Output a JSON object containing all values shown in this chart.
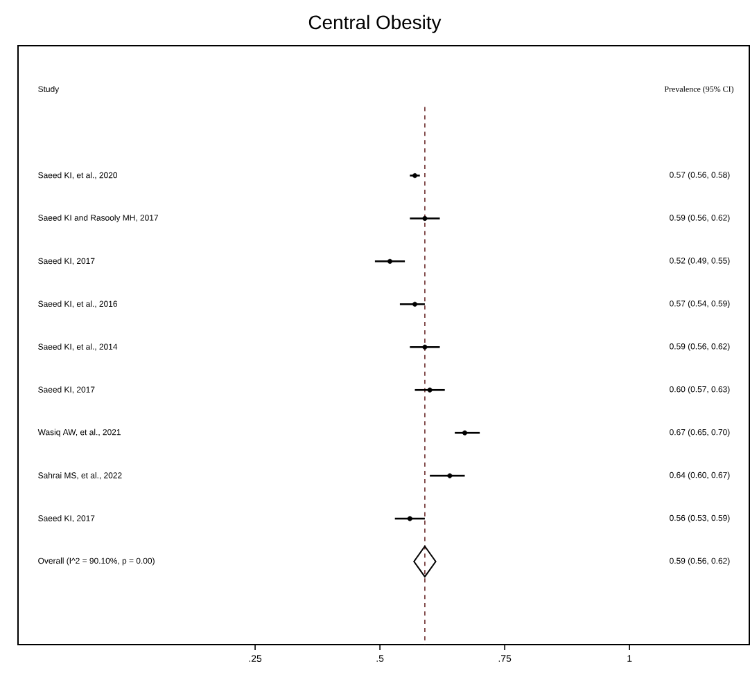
{
  "chart_data": {
    "type": "scatter",
    "orientation": "horizontal",
    "title": "Central Obesity",
    "annotations": [
      "Study",
      "Prevalence (95% CI)",
      "0.57 (0.56, 0.58)",
      "0.59 (0.56, 0.62)",
      "0.52 (0.49, 0.55)",
      "0.57 (0.54, 0.59)",
      "0.59 (0.56, 0.62)",
      "0.60 (0.57, 0.63)",
      "0.67 (0.65, 0.70)",
      "0.64 (0.60, 0.67)",
      "0.56 (0.53, 0.59)",
      "0.59 (0.56, 0.62)"
    ],
    "categories": [
      "Saeed KI, et al., 2020",
      "Saeed KI and Rasooly MH, 2017",
      "Saeed KI, 2017",
      "Saeed KI, et al., 2016",
      "Saeed KI, et al., 2014",
      "Saeed KI, 2017",
      "Wasiq AW, et al., 2021",
      "Sahrai MS, et al., 2022",
      "Saeed KI, 2017",
      "Overall  (I^2 = 90.10%, p = 0.00)"
    ],
    "series": [
      {
        "color": "#000000",
        "marker": "circle",
        "values": [
          0.57,
          0.59,
          0.52,
          0.57,
          0.59,
          0.6,
          0.67,
          0.64,
          0.56,
          null
        ],
        "errors": [
          [
            0.56,
            0.58
          ],
          [
            0.56,
            0.62
          ],
          [
            0.49,
            0.55
          ],
          [
            0.54,
            0.59
          ],
          [
            0.56,
            0.62
          ],
          [
            0.57,
            0.63
          ],
          [
            0.65,
            0.7
          ],
          [
            0.6,
            0.67
          ],
          [
            0.53,
            0.59
          ],
          null
        ]
      },
      {
        "color": "#000000",
        "marker": "diamond",
        "values": [
          null,
          null,
          null,
          null,
          null,
          null,
          null,
          null,
          null,
          0.59
        ]
      }
    ],
    "xlim": [
      -0.225,
      1.24
    ],
    "xticks": [
      {
        "value": 0.25,
        "label": ".25"
      },
      {
        "value": 0.5,
        "label": ".5"
      },
      {
        "value": 0.75,
        "label": ".75"
      },
      {
        "value": 1,
        "label": "1"
      }
    ],
    "ref_lines": [
      {
        "axis": "x",
        "value": 0.59,
        "color": "#6b2a2a",
        "line_style": "dashed"
      }
    ],
    "grid": false
  }
}
